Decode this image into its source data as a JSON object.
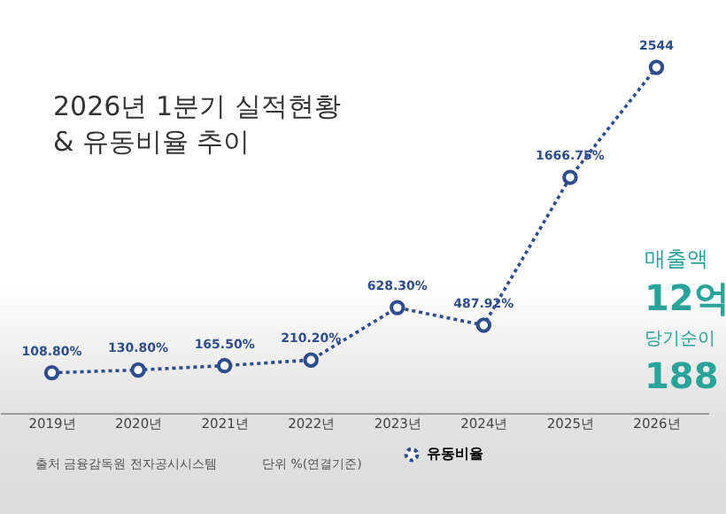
{
  "chart_data": {
    "type": "line",
    "title": "2026년 1분기 실적현황\n& 유동비율 추이",
    "categories": [
      "2019년",
      "2020년",
      "2021년",
      "2022년",
      "2023년",
      "2024년",
      "2025년",
      "2026년"
    ],
    "series": [
      {
        "name": "유동비율",
        "color": "#2e4d8e",
        "values": [
          108.8,
          130.8,
          165.5,
          210.2,
          628.3,
          487.92,
          1666.75,
          2544
        ],
        "value_labels": [
          "108.80%",
          "130.80%",
          "165.50%",
          "210.20%",
          "628.30%",
          "487.92%",
          "1666.75%",
          "2544"
        ]
      }
    ],
    "marker": "circle",
    "line_style": "dotted",
    "legend": "bottom",
    "grid": false,
    "annotations": [
      "출처 금융감독원 전자공시시스템",
      "단위 %(연결기준)",
      "매출액",
      "12억",
      "당기순이",
      "188"
    ]
  }
}
